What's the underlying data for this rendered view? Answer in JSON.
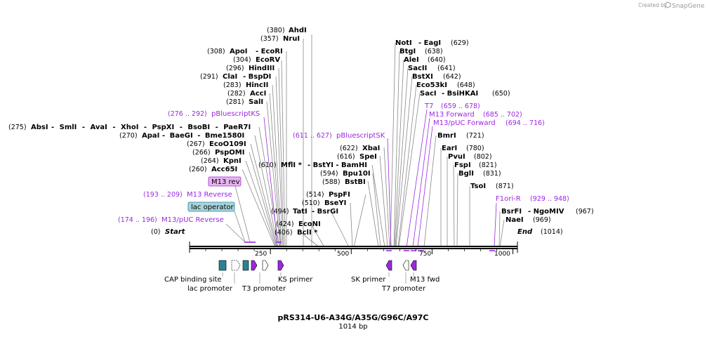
{
  "header": {
    "created_by": "Created by",
    "brand": "SnapGene"
  },
  "plasmid": {
    "name": "pRS314-U6-A34G/A35G/G96C/A97C",
    "length_label": "1014 bp"
  },
  "map": {
    "start": {
      "label": "Start",
      "pos": "(0)"
    },
    "end": {
      "label": "End",
      "pos": "(1014)"
    },
    "ticks": [
      "250",
      "500",
      "750",
      "1000"
    ]
  },
  "sites": {
    "ahdi": {
      "pos": "(380)",
      "name": "AhdI"
    },
    "nrui": {
      "pos": "(357)",
      "name": "NruI"
    },
    "apoi": {
      "pos": "(308)",
      "name": "ApoI",
      "alt": "- EcoRI"
    },
    "ecorv": {
      "pos": "(304)",
      "name": "EcoRV"
    },
    "hindiii": {
      "pos": "(296)",
      "name": "HindIII"
    },
    "clai": {
      "pos": "(291)",
      "name": "ClaI",
      "alt": "- BspDI"
    },
    "hincii": {
      "pos": "(283)",
      "name": "HincII"
    },
    "acci": {
      "pos": "(282)",
      "name": "AccI"
    },
    "sali": {
      "pos": "(281)",
      "name": "SalI"
    },
    "absi": {
      "pos": "(275)",
      "name": "AbsI",
      "alt": "- SmlI - AvaI - XhoI - PspXI - BsoBI - PaeR7I"
    },
    "apai": {
      "pos": "(270)",
      "name": "ApaI",
      "alt": "- BaeGI - Bme1580I"
    },
    "eco109": {
      "pos": "(267)",
      "name": "EcoO109I"
    },
    "pspomi": {
      "pos": "(266)",
      "name": "PspOMI"
    },
    "kpni": {
      "pos": "(264)",
      "name": "KpnI"
    },
    "acc65i": {
      "pos": "(260)",
      "name": "Acc65I"
    },
    "tati": {
      "pos": "(494)",
      "name": "TatI",
      "alt": "- BsrGI"
    },
    "econi": {
      "pos": "(424)",
      "name": "EcoNI"
    },
    "bcli": {
      "pos": "(406)",
      "name": "BclI *"
    },
    "mfli": {
      "pos": "(610)",
      "name": "MflI *",
      "alt": "- BstYI - BamHI"
    },
    "xbai": {
      "pos": "(622)",
      "name": "XbaI"
    },
    "spei": {
      "pos": "(616)",
      "name": "SpeI"
    },
    "bpu10i": {
      "pos": "(594)",
      "name": "Bpu10I"
    },
    "bstbi": {
      "pos": "(588)",
      "name": "BstBI"
    },
    "pspfi": {
      "pos": "(514)",
      "name": "PspFI"
    },
    "bseyi": {
      "pos": "(510)",
      "name": "BseYI"
    },
    "noti": {
      "name": "NotI",
      "alt": "- EagI",
      "pos": "(629)"
    },
    "btgi": {
      "name": "BtgI",
      "pos": "(638)"
    },
    "alei": {
      "name": "AleI",
      "pos": "(640)"
    },
    "sacii": {
      "name": "SacII",
      "pos": "(641)"
    },
    "bstxi": {
      "name": "BstXI",
      "pos": "(642)"
    },
    "eco53ki": {
      "name": "Eco53kI",
      "pos": "(648)"
    },
    "saci": {
      "name": "SacI",
      "alt": "- BsiHKAI",
      "pos": "(650)"
    },
    "bmri": {
      "name": "BmrI",
      "pos": "(721)"
    },
    "eari": {
      "name": "EarI",
      "pos": "(780)"
    },
    "pvui": {
      "name": "PvuI",
      "pos": "(802)"
    },
    "fspi": {
      "name": "FspI",
      "pos": "(821)"
    },
    "bgli": {
      "name": "BglI",
      "pos": "(831)"
    },
    "tsoi": {
      "name": "TsoI",
      "pos": "(871)"
    },
    "bsrfi": {
      "name": "BsrFI",
      "alt": "- NgoMIV",
      "pos": "(967)"
    },
    "naei": {
      "name": "NaeI",
      "pos": "(969)"
    }
  },
  "primers": {
    "pbks_ks": {
      "range": "(276 .. 292)",
      "name": "pBluescriptKS"
    },
    "m13rev_box": "M13 rev",
    "m13rev": {
      "range": "(193 .. 209)",
      "name": "M13 Reverse"
    },
    "lacop_box": "lac operator",
    "m13puc_rev": {
      "range": "(174 .. 196)",
      "name": "M13/pUC Reverse"
    },
    "pbsk": {
      "range": "(611 .. 627)",
      "name": "pBluescriptSK"
    },
    "t7": {
      "name": "T7",
      "range": "(659 .. 678)"
    },
    "m13fwd": {
      "name": "M13 Forward",
      "range": "(685 .. 702)"
    },
    "m13puc_fwd": {
      "name": "M13/pUC Forward",
      "range": "(694 .. 716)"
    },
    "f1ori_r": {
      "name": "F1ori-R",
      "range": "(929 .. 948)"
    }
  },
  "features": {
    "cap": "CAP binding site",
    "lacp": "lac promoter",
    "t3p": "T3 promoter",
    "ksp": "KS primer",
    "skp": "SK primer",
    "t7p": "T7 promoter",
    "m13f": "M13 fwd"
  },
  "colors": {
    "primer": "#9c27e0",
    "feature_teal": "#2a8296",
    "lac_box": "#a8d4dc",
    "m13rev_box": "#e8b4f0"
  }
}
